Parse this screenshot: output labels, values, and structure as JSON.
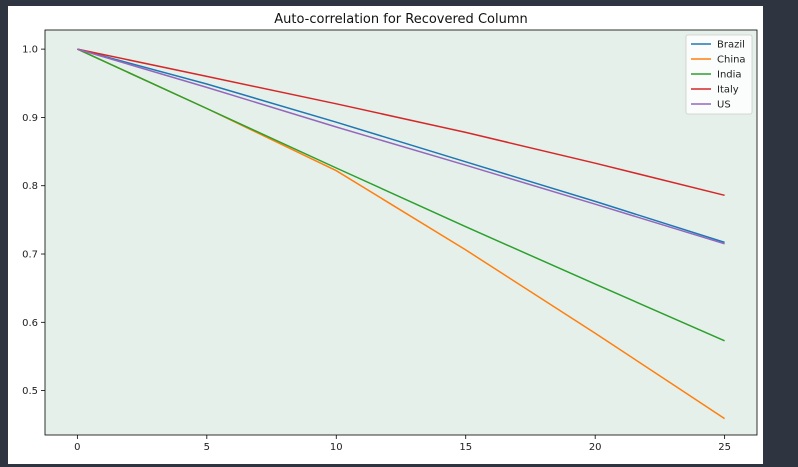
{
  "chart_data": {
    "type": "line",
    "title": "Auto-correlation for Recovered Column",
    "xlabel": "",
    "ylabel": "",
    "xlim": [
      -1.25,
      26.25
    ],
    "ylim": [
      0.435,
      1.028
    ],
    "xticks": [
      0,
      5,
      10,
      15,
      20,
      25
    ],
    "yticks": [
      0.5,
      0.6,
      0.7,
      0.8,
      0.9,
      1.0
    ],
    "xtick_labels": [
      "0",
      "5",
      "10",
      "15",
      "20",
      "25"
    ],
    "ytick_labels": [
      "0.5",
      "0.6",
      "0.7",
      "0.8",
      "0.9",
      "1.0"
    ],
    "grid": false,
    "legend_position": "top-right",
    "background_color": "#e5f0ea",
    "x": [
      0,
      5,
      10,
      15,
      20,
      25
    ],
    "series": [
      {
        "name": "Brazil",
        "color": "#1f77b4",
        "values": [
          1.0,
          0.949,
          0.893,
          0.835,
          0.777,
          0.717
        ]
      },
      {
        "name": "China",
        "color": "#ff7f0e",
        "values": [
          1.0,
          0.913,
          0.822,
          0.706,
          0.584,
          0.459
        ]
      },
      {
        "name": "India",
        "color": "#2ca02c",
        "values": [
          1.0,
          0.913,
          0.826,
          0.74,
          0.656,
          0.573
        ]
      },
      {
        "name": "Italy",
        "color": "#d62728",
        "values": [
          1.0,
          0.96,
          0.92,
          0.878,
          0.833,
          0.786
        ]
      },
      {
        "name": "US",
        "color": "#9467bd",
        "values": [
          1.0,
          0.944,
          0.886,
          0.83,
          0.773,
          0.715
        ]
      }
    ]
  }
}
